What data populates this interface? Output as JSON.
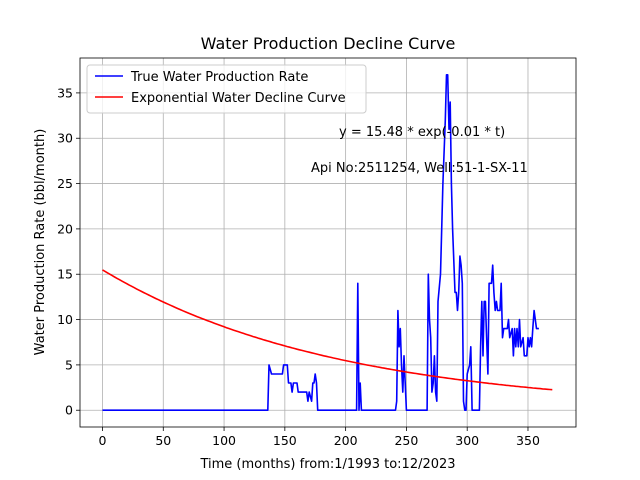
{
  "chart_data": {
    "type": "line",
    "title": "Water Production Decline Curve",
    "xlabel": "Time (months) from:1/1993 to:12/2023",
    "ylabel": "Water Production Rate (bbl/month)",
    "xlim": [
      -18.5,
      389.5
    ],
    "ylim": [
      -1.85,
      38.85
    ],
    "xticks": [
      0,
      50,
      100,
      150,
      200,
      250,
      300,
      350
    ],
    "yticks": [
      0,
      5,
      10,
      15,
      20,
      25,
      30,
      35
    ],
    "grid": true,
    "legend_position": "top-left",
    "annotations": [
      {
        "text": "y = 15.48 * exp(-0.01 * t)",
        "x": 195,
        "y": 30
      },
      {
        "text": "Api No:2511254, Well:51-1-SX-11",
        "x": 172,
        "y": 26
      }
    ],
    "series": [
      {
        "name": "True Water Production Rate",
        "color": "#0000ff",
        "points": [
          [
            0,
            0
          ],
          [
            136,
            0
          ],
          [
            137,
            5
          ],
          [
            139,
            4
          ],
          [
            148,
            4
          ],
          [
            149,
            5
          ],
          [
            152,
            5
          ],
          [
            153,
            3
          ],
          [
            155,
            3
          ],
          [
            156,
            2
          ],
          [
            157,
            3
          ],
          [
            160,
            3
          ],
          [
            161,
            2
          ],
          [
            168,
            2
          ],
          [
            169,
            1
          ],
          [
            170,
            2
          ],
          [
            172,
            1
          ],
          [
            173,
            3
          ],
          [
            174,
            3
          ],
          [
            175,
            4
          ],
          [
            176,
            3
          ],
          [
            177,
            0
          ],
          [
            209,
            0
          ],
          [
            210,
            14
          ],
          [
            211,
            0
          ],
          [
            212,
            3
          ],
          [
            213,
            0
          ],
          [
            241,
            0
          ],
          [
            242,
            1
          ],
          [
            243,
            11
          ],
          [
            244,
            7
          ],
          [
            245,
            9
          ],
          [
            246,
            5
          ],
          [
            247,
            2
          ],
          [
            248,
            6
          ],
          [
            249,
            3
          ],
          [
            250,
            0
          ],
          [
            267,
            0
          ],
          [
            268,
            15
          ],
          [
            269,
            10
          ],
          [
            270,
            8
          ],
          [
            271,
            2
          ],
          [
            272,
            3
          ],
          [
            273,
            6
          ],
          [
            274,
            2
          ],
          [
            275,
            1
          ],
          [
            276,
            12
          ],
          [
            278,
            15
          ],
          [
            280,
            25
          ],
          [
            282,
            32
          ],
          [
            283,
            37
          ],
          [
            284,
            37
          ],
          [
            285,
            31
          ],
          [
            286,
            34
          ],
          [
            287,
            25
          ],
          [
            288,
            20
          ],
          [
            290,
            13
          ],
          [
            291,
            13
          ],
          [
            292,
            11
          ],
          [
            293,
            13
          ],
          [
            294,
            17
          ],
          [
            295,
            16
          ],
          [
            296,
            14
          ],
          [
            297,
            1
          ],
          [
            298,
            0
          ],
          [
            299,
            0
          ],
          [
            300,
            4
          ],
          [
            302,
            5
          ],
          [
            303,
            7
          ],
          [
            304,
            0
          ],
          [
            310,
            0
          ],
          [
            311,
            7
          ],
          [
            312,
            12
          ],
          [
            313,
            6
          ],
          [
            314,
            12
          ],
          [
            315,
            12
          ],
          [
            316,
            8
          ],
          [
            317,
            4
          ],
          [
            318,
            14
          ],
          [
            320,
            14
          ],
          [
            321,
            16
          ],
          [
            322,
            13
          ],
          [
            323,
            11
          ],
          [
            324,
            12
          ],
          [
            325,
            11
          ],
          [
            327,
            11
          ],
          [
            328,
            14
          ],
          [
            329,
            8
          ],
          [
            330,
            9
          ],
          [
            333,
            9
          ],
          [
            334,
            10
          ],
          [
            335,
            8
          ],
          [
            337,
            9
          ],
          [
            338,
            6
          ],
          [
            339,
            9
          ],
          [
            340,
            7
          ],
          [
            341,
            9
          ],
          [
            342,
            7
          ],
          [
            343,
            10
          ],
          [
            344,
            7
          ],
          [
            346,
            8
          ],
          [
            347,
            6
          ],
          [
            349,
            6
          ],
          [
            350,
            8
          ],
          [
            351,
            7
          ],
          [
            352,
            8
          ],
          [
            353,
            7
          ],
          [
            354,
            9
          ],
          [
            355,
            11
          ],
          [
            356,
            10
          ],
          [
            357,
            9
          ],
          [
            359,
            9
          ]
        ]
      },
      {
        "name": "Exponential Water Decline Curve",
        "color": "#ff0000",
        "model": "y = 15.48 * exp(-0.0052 * t)",
        "x_range": [
          0,
          370
        ]
      }
    ]
  }
}
